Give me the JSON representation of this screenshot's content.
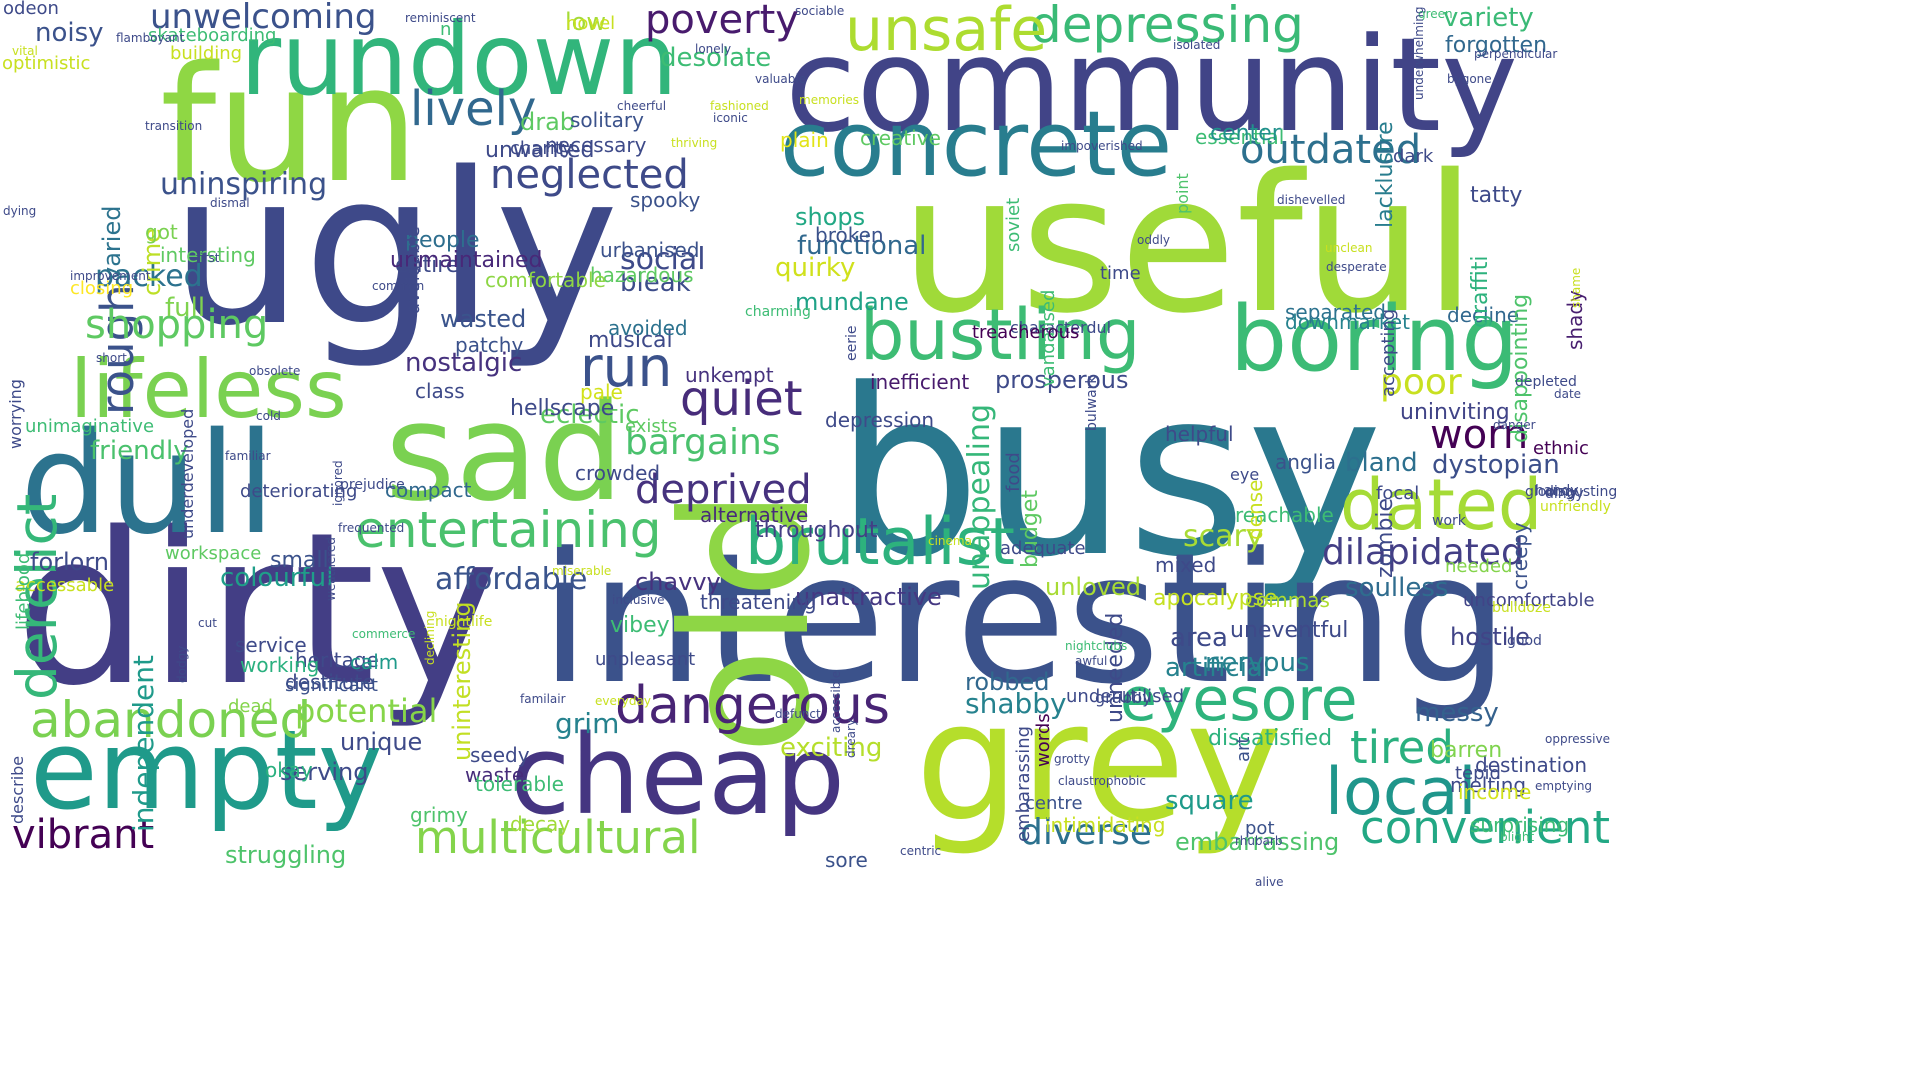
{
  "background": "#ffffff",
  "palette": [
    "#440154",
    "#443983",
    "#31688e",
    "#21918c",
    "#35b779",
    "#90d743",
    "#fde725"
  ],
  "words": [
    {
      "text": "busy",
      "color": "#2a788e"
    },
    {
      "text": "dirty",
      "color": "#433e85"
    },
    {
      "text": "interesting",
      "color": "#3b528b"
    },
    {
      "text": "ugly",
      "color": "#3e4989"
    },
    {
      "text": "useful",
      "color": "#a0da39"
    },
    {
      "text": "community",
      "color": "#414487"
    },
    {
      "text": "old",
      "color": "#8ed645"
    },
    {
      "text": "fun",
      "color": "#8fd744"
    },
    {
      "text": "grey",
      "color": "#b5de2b"
    },
    {
      "text": "sad",
      "color": "#7ad151"
    },
    {
      "text": "dull",
      "color": "#2c738e"
    },
    {
      "text": "cheap",
      "color": "#453581"
    },
    {
      "text": "empty",
      "color": "#1f9a8a"
    },
    {
      "text": "rundown",
      "color": "#31b57b"
    },
    {
      "text": "concrete",
      "color": "#287d8e"
    },
    {
      "text": "boring",
      "color": "#3bbb75"
    },
    {
      "text": "lifeless",
      "color": "#7ad151"
    },
    {
      "text": "depressing",
      "color": "#3aba76"
    },
    {
      "text": "unsafe",
      "color": "#addc30"
    },
    {
      "text": "bustling",
      "color": "#3dbc74"
    },
    {
      "text": "brutalist",
      "color": "#2db27d"
    },
    {
      "text": "derelict",
      "color": "#35b779"
    },
    {
      "text": "rough",
      "color": "#3b528b"
    },
    {
      "text": "dangerous",
      "color": "#482475"
    },
    {
      "text": "entertaining",
      "color": "#4ac16d"
    },
    {
      "text": "eyesore",
      "color": "#2eb37c"
    },
    {
      "text": "local",
      "color": "#1f968b"
    },
    {
      "text": "dated",
      "color": "#a5db36"
    },
    {
      "text": "abandoned",
      "color": "#7ad151"
    },
    {
      "text": "multicultural",
      "color": "#84d44b"
    },
    {
      "text": "convenient",
      "color": "#22a884"
    },
    {
      "text": "vibrant",
      "color": "#440154"
    },
    {
      "text": "poverty",
      "color": "#481b6d"
    },
    {
      "text": "lively",
      "color": "#31688e"
    },
    {
      "text": "neglected",
      "color": "#3e4a89"
    },
    {
      "text": "outdated",
      "color": "#2d708e"
    },
    {
      "text": "worn",
      "color": "#440154"
    },
    {
      "text": "quiet",
      "color": "#472c7a"
    },
    {
      "text": "run",
      "color": "#3b528b"
    },
    {
      "text": "poor",
      "color": "#c8e020"
    },
    {
      "text": "tired",
      "color": "#2ab07f"
    },
    {
      "text": "shopping",
      "color": "#5ec962"
    },
    {
      "text": "diverse",
      "color": "#2c718e"
    },
    {
      "text": "unwelcoming",
      "color": "#3b528b"
    },
    {
      "text": "deprived",
      "color": "#46327e"
    },
    {
      "text": "bargains",
      "color": "#4ac16d"
    },
    {
      "text": "uninspiring",
      "color": "#3b528b"
    },
    {
      "text": "dilapidated",
      "color": "#433e85"
    },
    {
      "text": "social",
      "color": "#3e4a89"
    },
    {
      "text": "packed",
      "color": "#2c728e"
    },
    {
      "text": "potential",
      "color": "#86d549"
    },
    {
      "text": "struggling",
      "color": "#4ec36b"
    },
    {
      "text": "shabby",
      "color": "#26828e"
    },
    {
      "text": "friendly",
      "color": "#4ac16d"
    },
    {
      "text": "grim",
      "color": "#26828e"
    },
    {
      "text": "scary",
      "color": "#a8db34"
    },
    {
      "text": "affordable",
      "color": "#3a548c"
    },
    {
      "text": "colourful",
      "color": "#1f9e89"
    },
    {
      "text": "soulless",
      "color": "#2f6c8e"
    },
    {
      "text": "bland",
      "color": "#2d708e"
    },
    {
      "text": "dystopian",
      "color": "#3c4f8a"
    },
    {
      "text": "unattractive",
      "color": "#453882"
    },
    {
      "text": "square",
      "color": "#1f9a8a"
    },
    {
      "text": "messy",
      "color": "#34618d"
    },
    {
      "text": "exciting",
      "color": "#b5de2b"
    },
    {
      "text": "functional",
      "color": "#31688e"
    },
    {
      "text": "shops",
      "color": "#22a884"
    },
    {
      "text": "quirky",
      "color": "#d0e11c"
    },
    {
      "text": "full",
      "color": "#7fd34e"
    },
    {
      "text": "mundane",
      "color": "#1fa287"
    },
    {
      "text": "uninviting",
      "color": "#414487"
    },
    {
      "text": "bleak",
      "color": "#3d4d8a"
    },
    {
      "text": "eclectic",
      "color": "#5ec962"
    },
    {
      "text": "unique",
      "color": "#3e4a89"
    },
    {
      "text": "robbed",
      "color": "#31688e"
    },
    {
      "text": "prosperous",
      "color": "#3e4a89"
    },
    {
      "text": "area",
      "color": "#3e4a89"
    },
    {
      "text": "nervous",
      "color": "#26828e"
    },
    {
      "text": "artificial",
      "color": "#26828e"
    },
    {
      "text": "noisy",
      "color": "#3b528b"
    },
    {
      "text": "crime",
      "color": "#bddf26"
    },
    {
      "text": "varied",
      "color": "#2c738e"
    },
    {
      "text": "chavvy",
      "color": "#46327e"
    },
    {
      "text": "nostalgic",
      "color": "#46327e"
    },
    {
      "text": "alternative",
      "color": "#472c7a"
    },
    {
      "text": "throughout",
      "color": "#433e85"
    },
    {
      "text": "entire",
      "color": "#3e4a89"
    },
    {
      "text": "people",
      "color": "#2e6e8e"
    },
    {
      "text": "independent",
      "color": "#1f9a8a"
    },
    {
      "text": "unappealing",
      "color": "#35b779"
    },
    {
      "text": "drab",
      "color": "#5ec962"
    },
    {
      "text": "low",
      "color": "#a5db36"
    },
    {
      "text": "variety",
      "color": "#3aba76"
    },
    {
      "text": "desolate",
      "color": "#3dbc74"
    },
    {
      "text": "uninteresting",
      "color": "#c2df23"
    },
    {
      "text": "apocalypse",
      "color": "#c5e021"
    },
    {
      "text": "decline",
      "color": "#31688e"
    },
    {
      "text": "dissatisfied",
      "color": "#2db27d"
    },
    {
      "text": "separated",
      "color": "#2c728e"
    },
    {
      "text": "wasted",
      "color": "#3a548c"
    },
    {
      "text": "downmarket",
      "color": "#26828e"
    },
    {
      "text": "hellscape",
      "color": "#3e4a89"
    },
    {
      "text": "forlorn",
      "color": "#3e4a89"
    },
    {
      "text": "small",
      "color": "#3b528b"
    },
    {
      "text": "destitute",
      "color": "#3e4a89"
    },
    {
      "text": "embarrassing",
      "color": "#4ec36b"
    },
    {
      "text": "disappointing",
      "color": "#4ec36b"
    },
    {
      "text": "shady",
      "color": "#481f70"
    },
    {
      "text": "graffiti",
      "color": "#2db27d"
    },
    {
      "text": "creepy",
      "color": "#3b528b"
    },
    {
      "text": "tatty",
      "color": "#3e4a89"
    },
    {
      "text": "hostile",
      "color": "#414487"
    },
    {
      "text": "uncomfortable",
      "color": "#414487"
    },
    {
      "text": "needed",
      "color": "#84d44b"
    },
    {
      "text": "commas",
      "color": "#addc30"
    },
    {
      "text": "uneventful",
      "color": "#3e4a89"
    },
    {
      "text": "unloved",
      "color": "#a8db34"
    },
    {
      "text": "lacklustre",
      "color": "#287d8e"
    },
    {
      "text": "forgotten",
      "color": "#31688e"
    },
    {
      "text": "budget",
      "color": "#5ec962"
    },
    {
      "text": "unmaintained",
      "color": "#482878"
    },
    {
      "text": "unkempt",
      "color": "#46327e"
    },
    {
      "text": "musical",
      "color": "#3e4a89"
    },
    {
      "text": "avoided",
      "color": "#2c728e"
    },
    {
      "text": "barren",
      "color": "#7fd34e"
    },
    {
      "text": "serving",
      "color": "#3e4a89"
    },
    {
      "text": "destination",
      "color": "#3e4a89"
    },
    {
      "text": "melting",
      "color": "#3e4a89"
    },
    {
      "text": "intimidating",
      "color": "#c8e020"
    },
    {
      "text": "seedy",
      "color": "#3e4a89"
    },
    {
      "text": "sore",
      "color": "#3b528b"
    },
    {
      "text": "waste",
      "color": "#472c7a"
    },
    {
      "text": "okay",
      "color": "#2ab07f"
    },
    {
      "text": "heritage",
      "color": "#3e4a89"
    },
    {
      "text": "service",
      "color": "#3e4a89"
    },
    {
      "text": "calm",
      "color": "#1f9a8a"
    },
    {
      "text": "significant",
      "color": "#3b528b"
    },
    {
      "text": "working",
      "color": "#2ab07f"
    },
    {
      "text": "patchy",
      "color": "#3b528b"
    },
    {
      "text": "reachable",
      "color": "#3dbc74"
    },
    {
      "text": "mixed",
      "color": "#3e4a89"
    },
    {
      "text": "compact",
      "color": "#31688e"
    },
    {
      "text": "helpful",
      "color": "#3e4a89"
    },
    {
      "text": "inefficient",
      "color": "#481b6d"
    },
    {
      "text": "depression",
      "color": "#3e4a89"
    },
    {
      "text": "threatening",
      "color": "#3e4a89"
    },
    {
      "text": "intersting",
      "color": "#5ec962"
    },
    {
      "text": "unwanted",
      "color": "#3e4a89"
    },
    {
      "text": "necessary",
      "color": "#3e4a89"
    },
    {
      "text": "solitary",
      "color": "#3b528b"
    },
    {
      "text": "essential",
      "color": "#3dbc74"
    },
    {
      "text": "center",
      "color": "#21918c"
    },
    {
      "text": "creative",
      "color": "#5ec962"
    },
    {
      "text": "plain",
      "color": "#e2e418"
    },
    {
      "text": "broken",
      "color": "#3b528b"
    },
    {
      "text": "urbanised",
      "color": "#3b528b"
    },
    {
      "text": "hazardous",
      "color": "#5ec962"
    },
    {
      "text": "spooky",
      "color": "#3b528b"
    },
    {
      "text": "got",
      "color": "#7ad151"
    },
    {
      "text": "comfortable",
      "color": "#8ed645"
    },
    {
      "text": "closing",
      "color": "#fde725"
    },
    {
      "text": "workspace",
      "color": "#5ec962"
    },
    {
      "text": "accessable",
      "color": "#c8e020"
    },
    {
      "text": "dead",
      "color": "#84d44b"
    },
    {
      "text": "decay",
      "color": "#a0da39"
    },
    {
      "text": "grimy",
      "color": "#4ec36b"
    },
    {
      "text": "tolerable",
      "color": "#3dbc74"
    },
    {
      "text": "income",
      "color": "#d2e21b"
    },
    {
      "text": "tepid",
      "color": "#3e4a89"
    },
    {
      "text": "surprising",
      "color": "#3dbc74"
    },
    {
      "text": "underutilised",
      "color": "#3e4a89"
    },
    {
      "text": "unneeded",
      "color": "#3e4a89"
    },
    {
      "text": "words",
      "color": "#440154"
    },
    {
      "text": "embarassing",
      "color": "#3e4a89"
    },
    {
      "text": "art",
      "color": "#3b528b"
    },
    {
      "text": "centre",
      "color": "#3b528b"
    },
    {
      "text": "pot",
      "color": "#3b528b"
    },
    {
      "text": "ethnic",
      "color": "#440154"
    },
    {
      "text": "gloomy",
      "color": "#3e4a89"
    },
    {
      "text": "anglia",
      "color": "#3b528b"
    },
    {
      "text": "eye",
      "color": "#3e4a89"
    },
    {
      "text": "zombie",
      "color": "#3e4a89"
    },
    {
      "text": "dense",
      "color": "#c8e020"
    },
    {
      "text": "characterdul",
      "color": "#3e4a89"
    },
    {
      "text": "adequate",
      "color": "#3e4a89"
    },
    {
      "text": "time",
      "color": "#3e4a89"
    },
    {
      "text": "accepting",
      "color": "#3e4a89"
    },
    {
      "text": "vandalised",
      "color": "#3dbc74"
    },
    {
      "text": "treacherous",
      "color": "#440154"
    },
    {
      "text": "point",
      "color": "#4ec36b"
    },
    {
      "text": "dark",
      "color": "#3e4a89"
    },
    {
      "text": "focal",
      "color": "#3e4a89"
    },
    {
      "text": "soviet",
      "color": "#3dbc74"
    },
    {
      "text": "food",
      "color": "#3e4a89"
    },
    {
      "text": "pale",
      "color": "#d2e21b"
    },
    {
      "text": "class",
      "color": "#3e4a89"
    },
    {
      "text": "exists",
      "color": "#5ec962"
    },
    {
      "text": "crowded",
      "color": "#3e4a89"
    },
    {
      "text": "vibey",
      "color": "#3dbc74"
    },
    {
      "text": "unpleasant",
      "color": "#3e4a89"
    },
    {
      "text": "deteriorating",
      "color": "#3e4a89"
    },
    {
      "text": "underdeveloped",
      "color": "#3e4a89"
    },
    {
      "text": "unimaginative",
      "color": "#3dbc74"
    },
    {
      "text": "worrying",
      "color": "#3e4a89"
    },
    {
      "text": "describe",
      "color": "#3e4a89"
    },
    {
      "text": "lifeblood",
      "color": "#3dbc74"
    },
    {
      "text": "odeon",
      "color": "#3e4a89"
    },
    {
      "text": "optimistic",
      "color": "#c8e020"
    },
    {
      "text": "skateboarding",
      "color": "#3dbc74"
    },
    {
      "text": "n",
      "color": "#3dbc74"
    },
    {
      "text": "novel",
      "color": "#c8e020"
    },
    {
      "text": "building",
      "color": "#c8e020"
    },
    {
      "text": "avoidable",
      "color": "#3e4a89"
    },
    {
      "text": "charity",
      "color": "#3e4a89"
    },
    {
      "text": "charming",
      "color": "#3dbc74"
    },
    {
      "text": "eerie",
      "color": "#3e4a89"
    },
    {
      "text": "bulwark",
      "color": "#3e4a89"
    },
    {
      "text": "depleted",
      "color": "#3e4a89"
    },
    {
      "text": "date",
      "color": "#3e4a89"
    },
    {
      "text": "danger",
      "color": "#3e4a89"
    },
    {
      "text": "disgusting",
      "color": "#3e4a89"
    },
    {
      "text": "handy",
      "color": "#3e4a89"
    },
    {
      "text": "dingy",
      "color": "#3e4a89"
    },
    {
      "text": "unfriendly",
      "color": "#c8e020"
    },
    {
      "text": "work",
      "color": "#3e4a89"
    },
    {
      "text": "bulldoze",
      "color": "#c8e020"
    },
    {
      "text": "good",
      "color": "#3e4a89"
    },
    {
      "text": "oppressive",
      "color": "#3e4a89"
    },
    {
      "text": "emptying",
      "color": "#3e4a89"
    },
    {
      "text": "blight",
      "color": "#3dbc74"
    },
    {
      "text": "rhubarb",
      "color": "#3e4a89"
    },
    {
      "text": "grotty",
      "color": "#3e4a89"
    },
    {
      "text": "claustrophobic",
      "color": "#3e4a89"
    },
    {
      "text": "centric",
      "color": "#3e4a89"
    },
    {
      "text": "alive",
      "color": "#3e4a89"
    },
    {
      "text": "defunct",
      "color": "#3e4a89"
    },
    {
      "text": "everyday",
      "color": "#c8e020"
    },
    {
      "text": "familair",
      "color": "#3e4a89"
    },
    {
      "text": "grubby",
      "color": "#3e4a89"
    },
    {
      "text": "dreary",
      "color": "#3e4a89"
    },
    {
      "text": "accessible",
      "color": "#3e4a89"
    },
    {
      "text": "nightclubs",
      "color": "#3dbc74"
    },
    {
      "text": "awful",
      "color": "#3e4a89"
    },
    {
      "text": "cinema",
      "color": "#c8e020"
    },
    {
      "text": "miserable",
      "color": "#c8e020"
    },
    {
      "text": "inclusive",
      "color": "#3e4a89"
    },
    {
      "text": "nightlife",
      "color": "#c8e020"
    },
    {
      "text": "declining",
      "color": "#c8e020"
    },
    {
      "text": "weathered",
      "color": "#3e4a89"
    },
    {
      "text": "frequented",
      "color": "#3e4a89"
    },
    {
      "text": "prejudice",
      "color": "#3e4a89"
    },
    {
      "text": "ignored",
      "color": "#3e4a89"
    },
    {
      "text": "commerce",
      "color": "#3dbc74"
    },
    {
      "text": "cut",
      "color": "#3e4a89"
    },
    {
      "text": "dodgy",
      "color": "#3e4a89"
    },
    {
      "text": "short",
      "color": "#3e4a89"
    },
    {
      "text": "obsolete",
      "color": "#3e4a89"
    },
    {
      "text": "cold",
      "color": "#3e4a89"
    },
    {
      "text": "familiar",
      "color": "#3e4a89"
    },
    {
      "text": "common",
      "color": "#3e4a89"
    },
    {
      "text": "first",
      "color": "#3e4a89"
    },
    {
      "text": "improvement",
      "color": "#3e4a89"
    },
    {
      "text": "dying",
      "color": "#3e4a89"
    },
    {
      "text": "dismal",
      "color": "#3e4a89"
    },
    {
      "text": "transition",
      "color": "#3e4a89"
    },
    {
      "text": "vital",
      "color": "#c8e020"
    },
    {
      "text": "flamboyant",
      "color": "#3e4a89"
    },
    {
      "text": "reminiscent",
      "color": "#3e4a89"
    },
    {
      "text": "sociable",
      "color": "#3e4a89"
    },
    {
      "text": "lonely",
      "color": "#3e4a89"
    },
    {
      "text": "cheerful",
      "color": "#3e4a89"
    },
    {
      "text": "thriving",
      "color": "#c8e020"
    },
    {
      "text": "fashioned",
      "color": "#c8e020"
    },
    {
      "text": "iconic",
      "color": "#3e4a89"
    },
    {
      "text": "valuable",
      "color": "#3e4a89"
    },
    {
      "text": "memories",
      "color": "#c8e020"
    },
    {
      "text": "impoverished",
      "color": "#3e4a89"
    },
    {
      "text": "green",
      "color": "#3dbc74"
    },
    {
      "text": "perpendicular",
      "color": "#3e4a89"
    },
    {
      "text": "underwhelming",
      "color": "#3e4a89"
    },
    {
      "text": "isolated",
      "color": "#3e4a89"
    },
    {
      "text": "bygone",
      "color": "#3e4a89"
    },
    {
      "text": "dishevelled",
      "color": "#3e4a89"
    },
    {
      "text": "shame",
      "color": "#c8e020"
    },
    {
      "text": "unclean",
      "color": "#c8e020"
    },
    {
      "text": "desperate",
      "color": "#3e4a89"
    },
    {
      "text": "oddly",
      "color": "#3e4a89"
    }
  ]
}
